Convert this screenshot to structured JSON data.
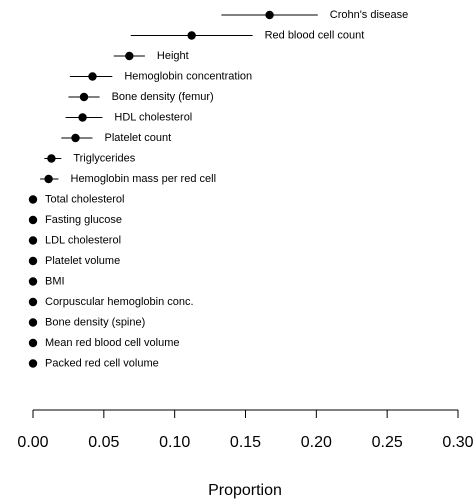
{
  "chart_data": {
    "type": "dot-errorbar",
    "xlabel": "Proportion",
    "categories": [
      "Crohn's disease",
      "Red blood cell count",
      "Height",
      "Hemoglobin concentration",
      "Bone density (femur)",
      "HDL cholesterol",
      "Platelet count",
      "Triglycerides",
      "Hemoglobin mass per red cell",
      "Total cholesterol",
      "Fasting glucose",
      "LDL cholesterol",
      "Platelet volume",
      "BMI",
      "Corpuscular hemoglobin conc.",
      "Bone density (spine)",
      "Mean red blood cell volume",
      "Packed red cell volume"
    ],
    "values": [
      0.167,
      0.112,
      0.068,
      0.042,
      0.036,
      0.035,
      0.03,
      0.013,
      0.011,
      0,
      0,
      0,
      0,
      0,
      0,
      0,
      0,
      0
    ],
    "lower": [
      0.133,
      0.069,
      0.057,
      0.026,
      0.025,
      0.023,
      0.02,
      0.008,
      0.005,
      0,
      0,
      0,
      0,
      0,
      0,
      0,
      0,
      0
    ],
    "upper": [
      0.201,
      0.155,
      0.079,
      0.056,
      0.047,
      0.049,
      0.042,
      0.02,
      0.018,
      0,
      0,
      0,
      0,
      0,
      0,
      0,
      0,
      0
    ],
    "color": "#000000",
    "xlim": [
      0,
      0.3
    ],
    "xticks": [
      {
        "value": 0,
        "label": "0.00"
      },
      {
        "value": 0.05,
        "label": "0.05"
      },
      {
        "value": 0.1,
        "label": "0.10"
      },
      {
        "value": 0.15,
        "label": "0.15"
      },
      {
        "value": 0.2,
        "label": "0.20"
      },
      {
        "value": 0.25,
        "label": "0.25"
      },
      {
        "value": 0.3,
        "label": "0.30"
      }
    ]
  }
}
